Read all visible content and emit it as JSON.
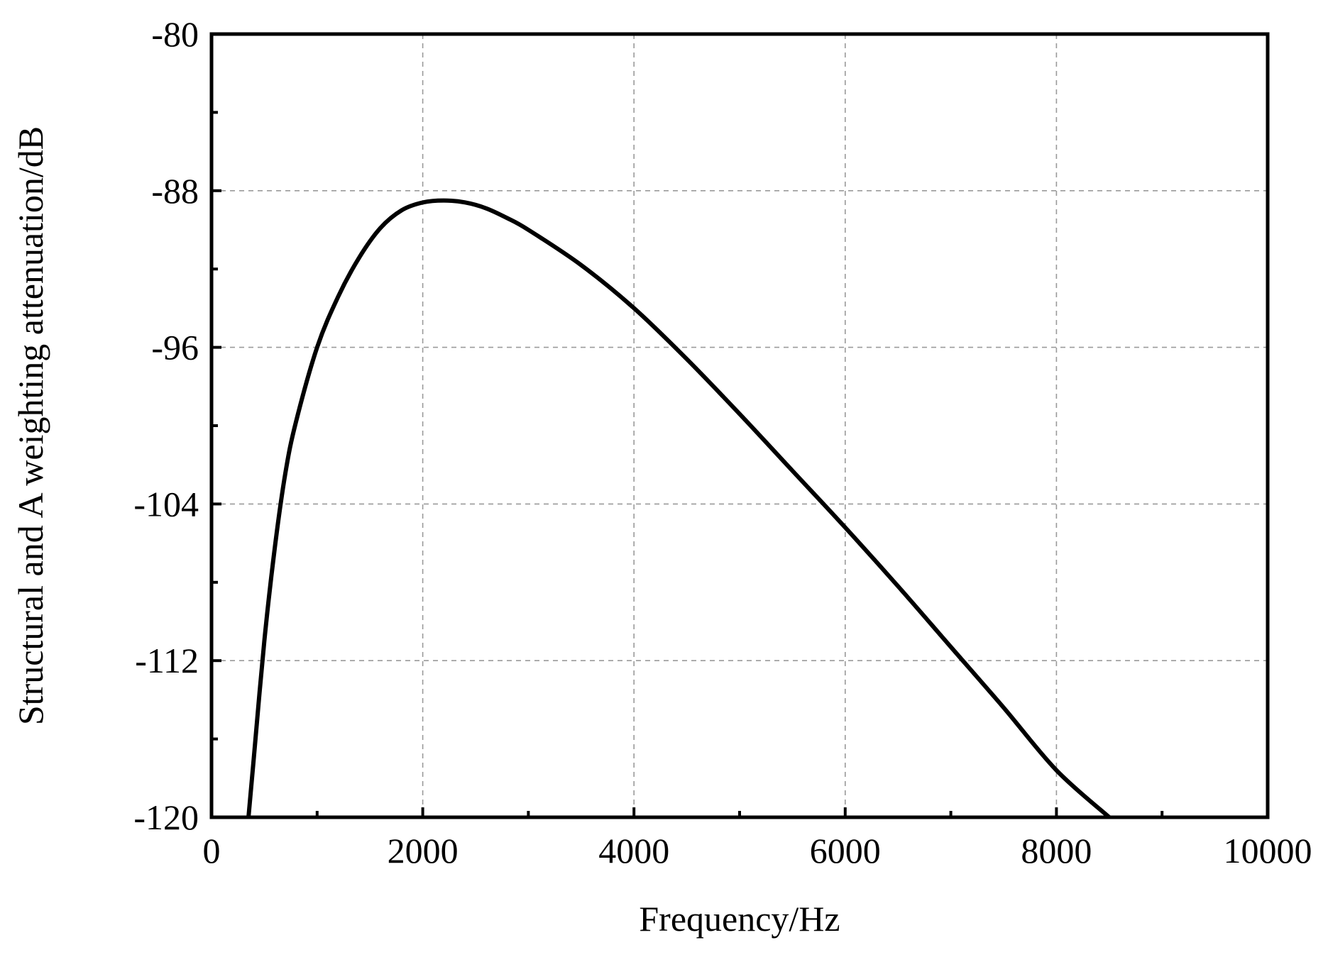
{
  "chart_data": {
    "type": "line",
    "xlabel": "Frequency/Hz",
    "ylabel": "Structural and A weighting attenuation/dB",
    "xlim": [
      0,
      10000
    ],
    "ylim": [
      -120,
      -80
    ],
    "x_ticks": [
      0,
      2000,
      4000,
      6000,
      8000,
      10000
    ],
    "y_ticks": [
      -120,
      -112,
      -104,
      -96,
      -88,
      -80
    ],
    "x_tick_labels": [
      "0",
      "2000",
      "4000",
      "6000",
      "8000",
      "10000"
    ],
    "y_tick_labels": [
      "-120",
      "-112",
      "-104",
      "-96",
      "-88",
      "-80"
    ],
    "grid": true,
    "grid_style": "dashed",
    "line_color": "#000000",
    "series": [
      {
        "x": [
          350,
          400,
          500,
          600,
          700,
          800,
          1000,
          1200,
          1400,
          1600,
          1800,
          2000,
          2200,
          2400,
          2600,
          2800,
          3000,
          3500,
          4000,
          4500,
          5000,
          5500,
          6000,
          6500,
          7000,
          7500,
          8000,
          8500
        ],
        "y": [
          -120.0,
          -117.0,
          -111.0,
          -106.2,
          -102.4,
          -99.8,
          -96.0,
          -93.4,
          -91.4,
          -89.9,
          -89.0,
          -88.6,
          -88.5,
          -88.6,
          -88.9,
          -89.4,
          -90.0,
          -91.8,
          -94.0,
          -96.6,
          -99.4,
          -102.3,
          -105.2,
          -108.2,
          -111.3,
          -114.4,
          -117.6,
          -120.0
        ]
      }
    ]
  }
}
